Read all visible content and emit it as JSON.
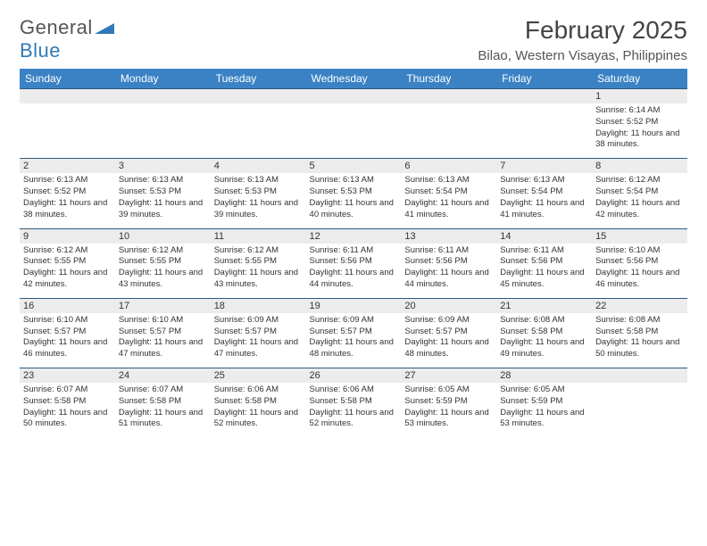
{
  "brand": {
    "part1": "General",
    "part2": "Blue",
    "tri_color": "#2f7ab8"
  },
  "title": "February 2025",
  "location": "Bilao, Western Visayas, Philippines",
  "colors": {
    "header_bg": "#3b82c4",
    "header_text": "#ffffff",
    "date_row_bg": "#ececec",
    "date_row_border": "#2c5a80",
    "text": "#333333",
    "background": "#ffffff"
  },
  "typography": {
    "title_fontsize": 28,
    "location_fontsize": 15,
    "weekday_fontsize": 12,
    "date_fontsize": 11,
    "cell_fontsize": 9.5
  },
  "weekdays": [
    "Sunday",
    "Monday",
    "Tuesday",
    "Wednesday",
    "Thursday",
    "Friday",
    "Saturday"
  ],
  "weeks": [
    {
      "dates": [
        "",
        "",
        "",
        "",
        "",
        "",
        "1"
      ],
      "cells": [
        "",
        "",
        "",
        "",
        "",
        "",
        "Sunrise: 6:14 AM\nSunset: 5:52 PM\nDaylight: 11 hours and 38 minutes."
      ]
    },
    {
      "dates": [
        "2",
        "3",
        "4",
        "5",
        "6",
        "7",
        "8"
      ],
      "cells": [
        "Sunrise: 6:13 AM\nSunset: 5:52 PM\nDaylight: 11 hours and 38 minutes.",
        "Sunrise: 6:13 AM\nSunset: 5:53 PM\nDaylight: 11 hours and 39 minutes.",
        "Sunrise: 6:13 AM\nSunset: 5:53 PM\nDaylight: 11 hours and 39 minutes.",
        "Sunrise: 6:13 AM\nSunset: 5:53 PM\nDaylight: 11 hours and 40 minutes.",
        "Sunrise: 6:13 AM\nSunset: 5:54 PM\nDaylight: 11 hours and 41 minutes.",
        "Sunrise: 6:13 AM\nSunset: 5:54 PM\nDaylight: 11 hours and 41 minutes.",
        "Sunrise: 6:12 AM\nSunset: 5:54 PM\nDaylight: 11 hours and 42 minutes."
      ]
    },
    {
      "dates": [
        "9",
        "10",
        "11",
        "12",
        "13",
        "14",
        "15"
      ],
      "cells": [
        "Sunrise: 6:12 AM\nSunset: 5:55 PM\nDaylight: 11 hours and 42 minutes.",
        "Sunrise: 6:12 AM\nSunset: 5:55 PM\nDaylight: 11 hours and 43 minutes.",
        "Sunrise: 6:12 AM\nSunset: 5:55 PM\nDaylight: 11 hours and 43 minutes.",
        "Sunrise: 6:11 AM\nSunset: 5:56 PM\nDaylight: 11 hours and 44 minutes.",
        "Sunrise: 6:11 AM\nSunset: 5:56 PM\nDaylight: 11 hours and 44 minutes.",
        "Sunrise: 6:11 AM\nSunset: 5:56 PM\nDaylight: 11 hours and 45 minutes.",
        "Sunrise: 6:10 AM\nSunset: 5:56 PM\nDaylight: 11 hours and 46 minutes."
      ]
    },
    {
      "dates": [
        "16",
        "17",
        "18",
        "19",
        "20",
        "21",
        "22"
      ],
      "cells": [
        "Sunrise: 6:10 AM\nSunset: 5:57 PM\nDaylight: 11 hours and 46 minutes.",
        "Sunrise: 6:10 AM\nSunset: 5:57 PM\nDaylight: 11 hours and 47 minutes.",
        "Sunrise: 6:09 AM\nSunset: 5:57 PM\nDaylight: 11 hours and 47 minutes.",
        "Sunrise: 6:09 AM\nSunset: 5:57 PM\nDaylight: 11 hours and 48 minutes.",
        "Sunrise: 6:09 AM\nSunset: 5:57 PM\nDaylight: 11 hours and 48 minutes.",
        "Sunrise: 6:08 AM\nSunset: 5:58 PM\nDaylight: 11 hours and 49 minutes.",
        "Sunrise: 6:08 AM\nSunset: 5:58 PM\nDaylight: 11 hours and 50 minutes."
      ]
    },
    {
      "dates": [
        "23",
        "24",
        "25",
        "26",
        "27",
        "28",
        ""
      ],
      "cells": [
        "Sunrise: 6:07 AM\nSunset: 5:58 PM\nDaylight: 11 hours and 50 minutes.",
        "Sunrise: 6:07 AM\nSunset: 5:58 PM\nDaylight: 11 hours and 51 minutes.",
        "Sunrise: 6:06 AM\nSunset: 5:58 PM\nDaylight: 11 hours and 52 minutes.",
        "Sunrise: 6:06 AM\nSunset: 5:58 PM\nDaylight: 11 hours and 52 minutes.",
        "Sunrise: 6:05 AM\nSunset: 5:59 PM\nDaylight: 11 hours and 53 minutes.",
        "Sunrise: 6:05 AM\nSunset: 5:59 PM\nDaylight: 11 hours and 53 minutes.",
        ""
      ]
    }
  ]
}
